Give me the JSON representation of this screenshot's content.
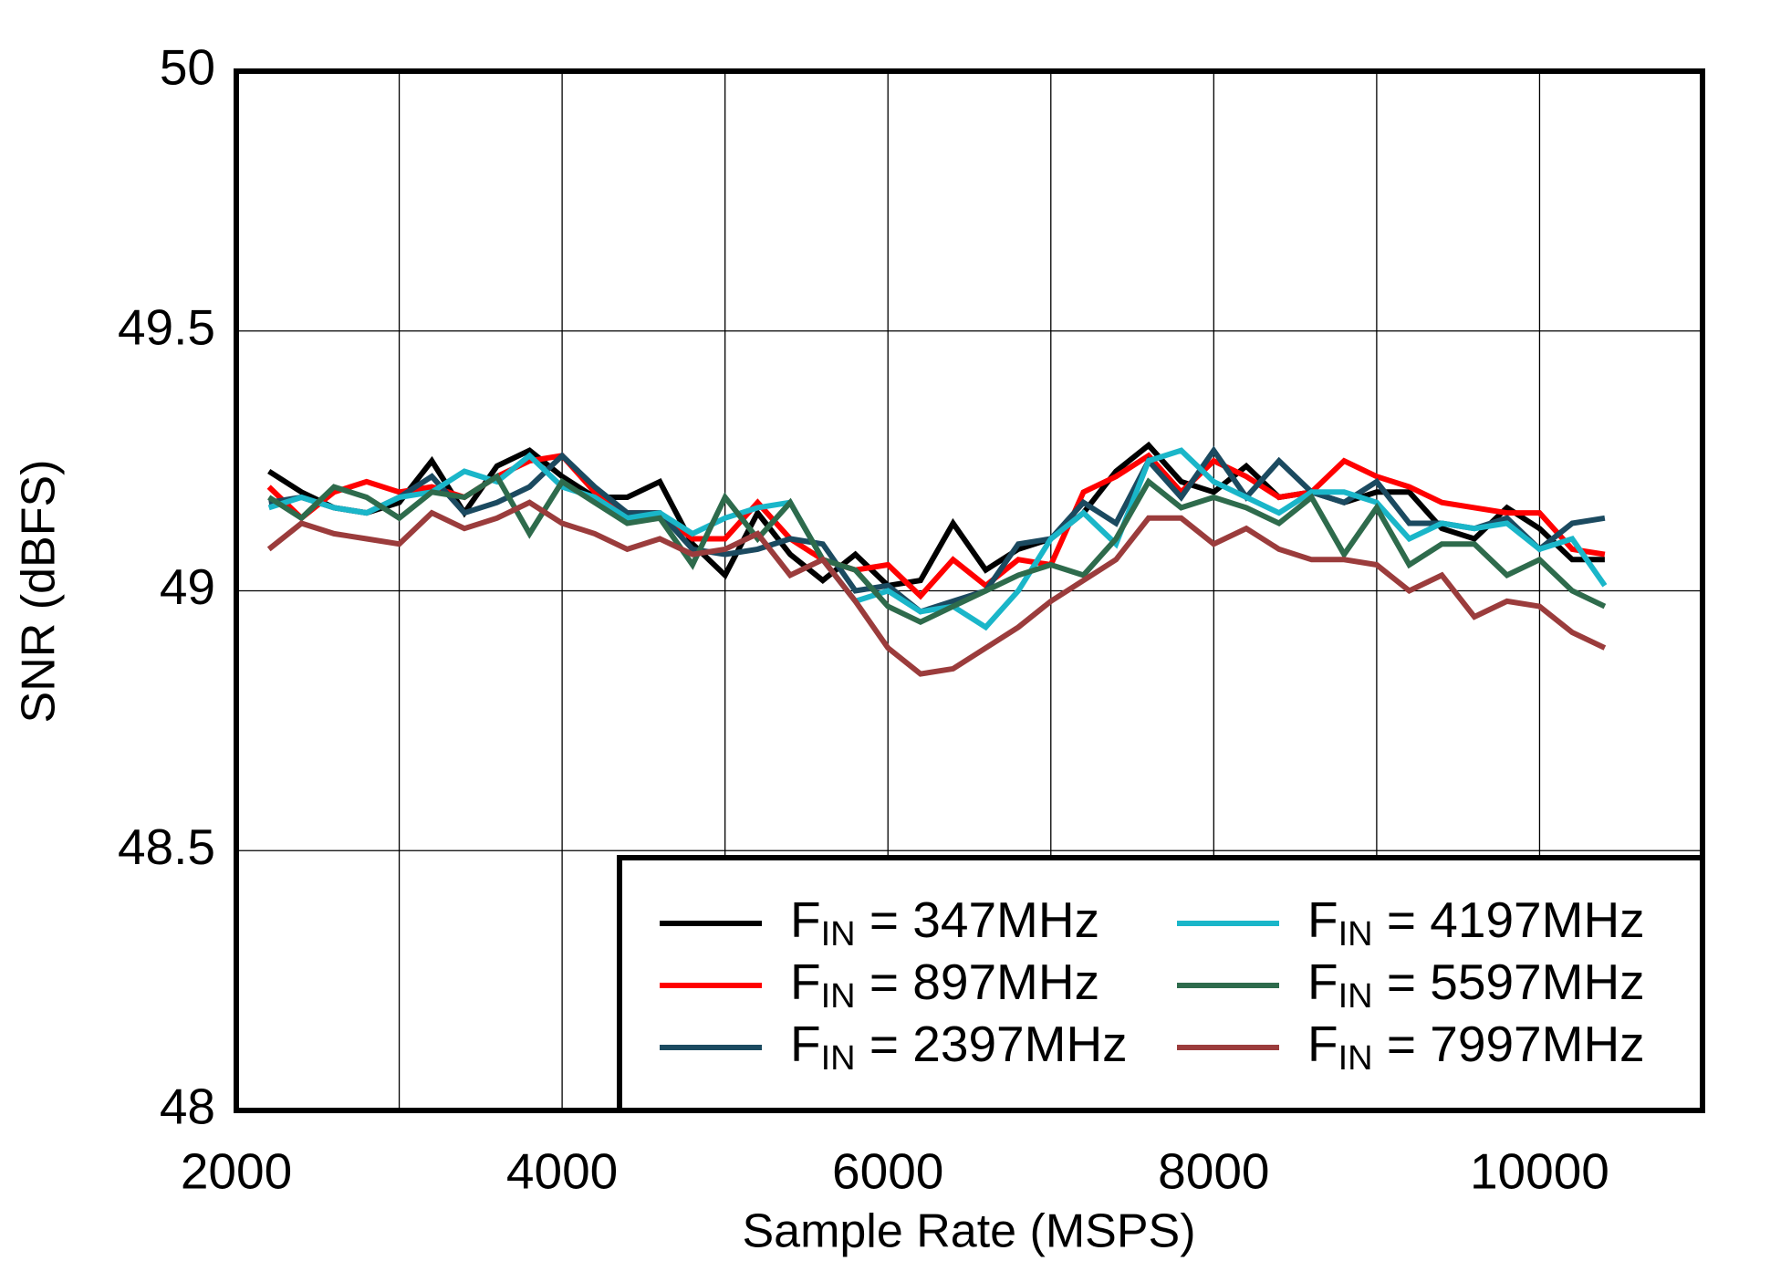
{
  "chart_data": {
    "type": "line",
    "x_label": "Sample Rate  (MSPS)",
    "y_label": "SNR  (dBFS)",
    "x": [
      2200,
      2400,
      2600,
      2800,
      3000,
      3200,
      3400,
      3600,
      3800,
      4000,
      4200,
      4400,
      4600,
      4800,
      5000,
      5200,
      5400,
      5600,
      5800,
      6000,
      6200,
      6400,
      6600,
      6800,
      7000,
      7200,
      7400,
      7600,
      7800,
      8000,
      8200,
      8400,
      8600,
      8800,
      9000,
      9200,
      9400,
      9600,
      9800,
      10000,
      10200,
      10400
    ],
    "series": [
      {
        "name": "FIN = 347MHz",
        "color": "#000000",
        "values": [
          49.23,
          49.19,
          49.16,
          49.15,
          49.17,
          49.25,
          49.15,
          49.24,
          49.27,
          49.22,
          49.18,
          49.18,
          49.21,
          49.09,
          49.03,
          49.15,
          49.07,
          49.02,
          49.07,
          49.01,
          49.02,
          49.13,
          49.04,
          49.08,
          49.1,
          49.15,
          49.23,
          49.28,
          49.21,
          49.19,
          49.24,
          49.18,
          49.19,
          49.17,
          49.19,
          49.19,
          49.12,
          49.1,
          49.16,
          49.12,
          49.06,
          49.06
        ]
      },
      {
        "name": "FIN = 897MHz",
        "color": "#ff0000",
        "values": [
          49.2,
          49.14,
          49.19,
          49.21,
          49.19,
          49.2,
          49.18,
          49.22,
          49.25,
          49.26,
          49.19,
          49.15,
          49.15,
          49.1,
          49.1,
          49.17,
          49.1,
          49.06,
          49.04,
          49.05,
          48.99,
          49.06,
          49.01,
          49.06,
          49.05,
          49.19,
          49.22,
          49.26,
          49.19,
          49.25,
          49.22,
          49.18,
          49.19,
          49.25,
          49.22,
          49.2,
          49.17,
          49.16,
          49.15,
          49.15,
          49.08,
          49.07
        ]
      },
      {
        "name": "FIN = 2397MHz",
        "color": "#1b4a60",
        "values": [
          49.17,
          49.18,
          49.16,
          49.15,
          49.18,
          49.22,
          49.15,
          49.17,
          49.2,
          49.26,
          49.2,
          49.15,
          49.15,
          49.08,
          49.07,
          49.08,
          49.1,
          49.09,
          49.0,
          49.01,
          48.96,
          48.98,
          49.0,
          49.09,
          49.1,
          49.17,
          49.13,
          49.25,
          49.18,
          49.27,
          49.18,
          49.25,
          49.19,
          49.17,
          49.21,
          49.13,
          49.13,
          49.12,
          49.14,
          49.08,
          49.13,
          49.14
        ]
      },
      {
        "name": "FIN = 4197MHz",
        "color": "#1ab6c9",
        "values": [
          49.16,
          49.18,
          49.16,
          49.15,
          49.18,
          49.19,
          49.23,
          49.21,
          49.26,
          49.2,
          49.18,
          49.14,
          49.15,
          49.11,
          49.14,
          49.16,
          49.17,
          49.06,
          48.98,
          49.0,
          48.96,
          48.97,
          48.93,
          49.0,
          49.1,
          49.15,
          49.09,
          49.25,
          49.27,
          49.21,
          49.18,
          49.15,
          49.19,
          49.19,
          49.17,
          49.1,
          49.13,
          49.12,
          49.13,
          49.08,
          49.1,
          49.01
        ]
      },
      {
        "name": "FIN = 5597MHz",
        "color": "#2e6b4c",
        "values": [
          49.18,
          49.14,
          49.2,
          49.18,
          49.14,
          49.19,
          49.18,
          49.22,
          49.11,
          49.21,
          49.17,
          49.13,
          49.14,
          49.05,
          49.18,
          49.1,
          49.17,
          49.06,
          49.04,
          48.97,
          48.94,
          48.97,
          49.0,
          49.03,
          49.05,
          49.03,
          49.1,
          49.21,
          49.16,
          49.18,
          49.16,
          49.13,
          49.18,
          49.07,
          49.16,
          49.05,
          49.09,
          49.09,
          49.03,
          49.06,
          49.0,
          48.97
        ]
      },
      {
        "name": "FIN = 7997MHz",
        "color": "#9b3c3c",
        "values": [
          49.08,
          49.13,
          49.11,
          49.1,
          49.09,
          49.15,
          49.12,
          49.14,
          49.17,
          49.13,
          49.11,
          49.08,
          49.1,
          49.07,
          49.08,
          49.11,
          49.03,
          49.06,
          48.98,
          48.89,
          48.84,
          48.85,
          48.89,
          48.93,
          48.98,
          49.02,
          49.06,
          49.14,
          49.14,
          49.09,
          49.12,
          49.08,
          49.06,
          49.06,
          49.05,
          49.0,
          49.03,
          48.95,
          48.98,
          48.97,
          48.92,
          48.89
        ]
      }
    ],
    "xlim": [
      2000,
      11000
    ],
    "xticks": [
      2000,
      4000,
      6000,
      8000,
      10000
    ],
    "xgrid": [
      3000,
      5000,
      7000,
      9000
    ],
    "ylim": [
      48,
      50
    ],
    "yticks": [
      48,
      48.5,
      49,
      49.5,
      50
    ],
    "grid": true,
    "legend": "lower right"
  }
}
